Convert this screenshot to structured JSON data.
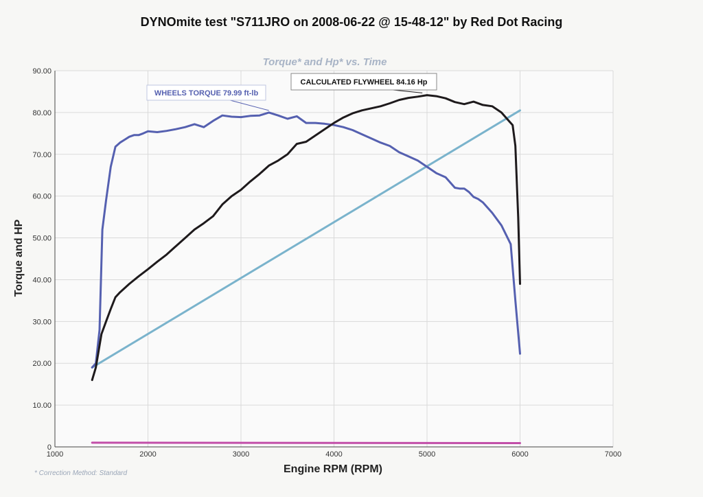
{
  "page": {
    "title": "DYNOmite test \"S711JRO on 2008-06-22 @ 15-48-12\" by Red Dot Racing",
    "footnote": "* Correction Method: Standard"
  },
  "chart_data": {
    "type": "line",
    "title": "Torque* and Hp* vs. Time",
    "xlabel": "Engine RPM (RPM)",
    "ylabel": "Torque and HP",
    "xlim": [
      1000,
      7000
    ],
    "ylim": [
      0,
      90
    ],
    "x_ticks": [
      "1000",
      "2000",
      "3000",
      "4000",
      "5000",
      "6000",
      "7000"
    ],
    "y_ticks": [
      "0",
      "10.00",
      "20.00",
      "30.00",
      "40.00",
      "50.00",
      "60.00",
      "70.00",
      "80.00",
      "90.00"
    ],
    "grid": true,
    "colors": {
      "torque": "#5560b0",
      "flywheel": "#1e1a1c",
      "ramp": "#7ab3cc",
      "baseline": "#c24ea8"
    },
    "annotations": [
      {
        "text": "WHEELS TORQUE 79.99 ft-lb",
        "series": "torque",
        "x": 3300,
        "y": 80.0
      },
      {
        "text": "CALCULATED FLYWHEEL 84.16 Hp",
        "series": "flywheel",
        "x": 4950,
        "y": 84.2
      }
    ],
    "series": [
      {
        "key": "torque",
        "x": [
          1400,
          1440,
          1480,
          1510,
          1550,
          1600,
          1650,
          1700,
          1750,
          1800,
          1850,
          1900,
          1950,
          2000,
          2100,
          2200,
          2300,
          2400,
          2500,
          2600,
          2700,
          2800,
          2900,
          3000,
          3100,
          3200,
          3300,
          3400,
          3500,
          3600,
          3700,
          3800,
          3900,
          4000,
          4100,
          4200,
          4300,
          4400,
          4500,
          4600,
          4700,
          4800,
          4900,
          5000,
          5100,
          5200,
          5300,
          5350,
          5400,
          5450,
          5500,
          5550,
          5600,
          5700,
          5800,
          5900,
          5950,
          6000
        ],
        "y": [
          19.0,
          20.0,
          28.0,
          52.0,
          59.0,
          67.0,
          71.8,
          72.8,
          73.5,
          74.2,
          74.6,
          74.6,
          75.0,
          75.5,
          75.3,
          75.6,
          76.0,
          76.5,
          77.2,
          76.5,
          78.0,
          79.3,
          79.0,
          78.9,
          79.2,
          79.3,
          80.0,
          79.3,
          78.5,
          79.1,
          77.5,
          77.5,
          77.3,
          77.0,
          76.5,
          75.8,
          74.8,
          73.8,
          72.8,
          72.0,
          70.5,
          69.5,
          68.5,
          67.0,
          65.5,
          64.5,
          62.0,
          61.8,
          61.8,
          61.0,
          59.8,
          59.3,
          58.5,
          56.0,
          53.0,
          48.5,
          35.0,
          22.3
        ]
      },
      {
        "key": "flywheel",
        "x": [
          1400,
          1440,
          1500,
          1550,
          1600,
          1650,
          1700,
          1800,
          1900,
          2000,
          2100,
          2200,
          2300,
          2400,
          2500,
          2600,
          2700,
          2800,
          2900,
          3000,
          3100,
          3200,
          3300,
          3400,
          3500,
          3600,
          3700,
          3800,
          3900,
          4000,
          4100,
          4200,
          4300,
          4400,
          4500,
          4600,
          4700,
          4800,
          4900,
          5000,
          5100,
          5200,
          5300,
          5400,
          5500,
          5600,
          5700,
          5800,
          5880,
          5920,
          5950,
          5980,
          6000
        ],
        "y": [
          16.0,
          19.0,
          27.0,
          30.0,
          33.0,
          35.8,
          37.0,
          39.0,
          40.8,
          42.5,
          44.3,
          46.0,
          48.0,
          50.0,
          52.0,
          53.5,
          55.2,
          58.0,
          60.0,
          61.5,
          63.5,
          65.3,
          67.3,
          68.5,
          70.0,
          72.5,
          73.0,
          74.5,
          76.0,
          77.5,
          78.8,
          79.8,
          80.5,
          81.0,
          81.5,
          82.2,
          83.0,
          83.5,
          83.8,
          84.16,
          83.9,
          83.4,
          82.5,
          82.0,
          82.6,
          81.8,
          81.5,
          80.0,
          78.0,
          77.0,
          72.0,
          55.0,
          39.0
        ]
      },
      {
        "key": "ramp",
        "x": [
          1400,
          6000
        ],
        "y": [
          19.0,
          80.5
        ]
      },
      {
        "key": "baseline",
        "x": [
          1400,
          6000
        ],
        "y": [
          1.0,
          0.9
        ]
      }
    ]
  }
}
